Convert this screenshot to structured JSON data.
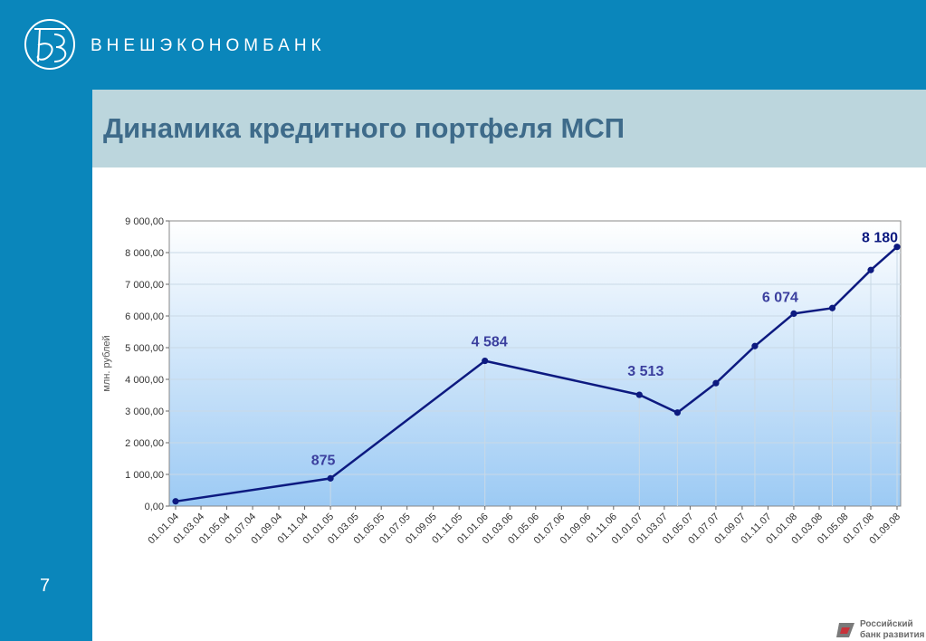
{
  "header": {
    "brand": "ВНЕШЭКОНОМБАНК",
    "logo_icon": "veb-monogram-logo"
  },
  "slide": {
    "title": "Динамика кредитного портфеля МСП",
    "page_number": "7"
  },
  "footer": {
    "logo_line1": "Российский",
    "logo_line2": "банк развития",
    "logo_icon": "rdb-logo-icon"
  },
  "colors": {
    "header_bar": "#0a86bb",
    "title_band": "#bcd6dd",
    "title_text": "#3e6b8a",
    "series_line": "#0d1a80",
    "label_dark": "#0d1a80",
    "label_mid": "#3b3f9e",
    "plot_top": "#ffffff",
    "plot_bottom": "#9ccaf4"
  },
  "chart_data": {
    "type": "line",
    "ylabel": "млн. рублей",
    "ylim": [
      0,
      9000
    ],
    "y_ticks": [
      "0,00",
      "1 000,00",
      "2 000,00",
      "3 000,00",
      "4 000,00",
      "5 000,00",
      "6 000,00",
      "7 000,00",
      "8 000,00",
      "9 000,00"
    ],
    "x_ticks": [
      "01.01.04",
      "01.03.04",
      "01.05.04",
      "01.07.04",
      "01.09.04",
      "01.11.04",
      "01.01.05",
      "01.03.05",
      "01.05.05",
      "01.07.05",
      "01.09.05",
      "01.11.05",
      "01.01.06",
      "01.03.06",
      "01.05.06",
      "01.07.06",
      "01.09.06",
      "01.11.06",
      "01.01.07",
      "01.03.07",
      "01.05.07",
      "01.07.07",
      "01.09.07",
      "01.11.07",
      "01.01.08",
      "01.03.08",
      "01.05.08",
      "01.07.08",
      "01.09.08"
    ],
    "grid": true,
    "series": [
      {
        "points": [
          {
            "x": "01.01.04",
            "y": 150
          },
          {
            "x": "01.01.05",
            "y": 875,
            "label": "875"
          },
          {
            "x": "01.01.06",
            "y": 4584,
            "label": "4 584"
          },
          {
            "x": "01.01.07",
            "y": 3513,
            "label": "3 513"
          },
          {
            "x": "01.04.07",
            "y": 2950
          },
          {
            "x": "01.07.07",
            "y": 3880
          },
          {
            "x": "01.10.07",
            "y": 5050
          },
          {
            "x": "01.01.08",
            "y": 6074,
            "label": "6 074"
          },
          {
            "x": "01.04.08",
            "y": 6250
          },
          {
            "x": "01.07.08",
            "y": 7450
          },
          {
            "x": "01.09.08",
            "y": 8180,
            "label": "8 180"
          }
        ]
      }
    ]
  }
}
